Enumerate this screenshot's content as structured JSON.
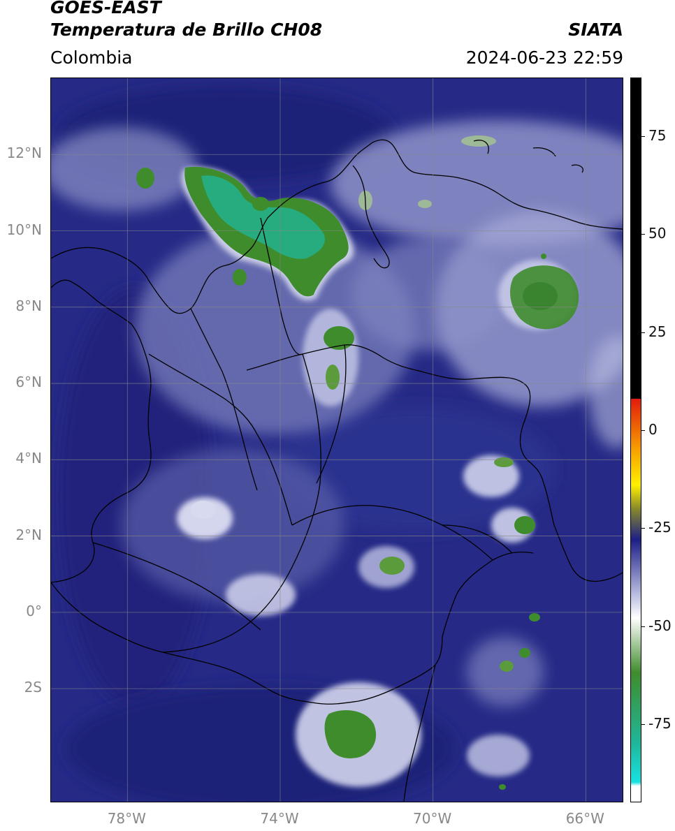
{
  "header": {
    "title_line1": "GOES-EAST",
    "title_line2": "Temperatura de Brillo CH08",
    "brand": "SIATA",
    "region": "Colombia",
    "datetime": "2024-06-23 22:59"
  },
  "map": {
    "lon_range": [
      -80,
      -65
    ],
    "lat_range": [
      -5,
      14
    ],
    "lat_ticks": [
      {
        "value": 12,
        "label": "12°N"
      },
      {
        "value": 10,
        "label": "10°N"
      },
      {
        "value": 8,
        "label": "8°N"
      },
      {
        "value": 6,
        "label": "6°N"
      },
      {
        "value": 4,
        "label": "4°N"
      },
      {
        "value": 2,
        "label": "2°N"
      },
      {
        "value": 0,
        "label": "0°"
      },
      {
        "value": -2,
        "label": "2S"
      }
    ],
    "lon_ticks": [
      {
        "value": -78,
        "label": "78°W"
      },
      {
        "value": -74,
        "label": "74°W"
      },
      {
        "value": -70,
        "label": "70°W"
      },
      {
        "value": -66,
        "label": "66°W"
      }
    ],
    "grid": true
  },
  "colorbar": {
    "range": [
      -95,
      90
    ],
    "ticks": [
      {
        "value": 75,
        "label": "75"
      },
      {
        "value": 50,
        "label": "50"
      },
      {
        "value": 25,
        "label": "25"
      },
      {
        "value": 0,
        "label": "0"
      },
      {
        "value": -25,
        "label": "-25"
      },
      {
        "value": -50,
        "label": "-50"
      },
      {
        "value": -75,
        "label": "-75"
      }
    ],
    "colors": {
      "black": "#000000",
      "red": "#e21b0c",
      "orange": "#f7a000",
      "yellow": "#fff000",
      "olive": "#8a8a2a",
      "navy": "#1c1f86",
      "lavender": "#b9bde0",
      "white": "#ffffff",
      "green": "#3f8c2c",
      "teal": "#1fb79a",
      "cyan": "#18e2e2"
    }
  }
}
